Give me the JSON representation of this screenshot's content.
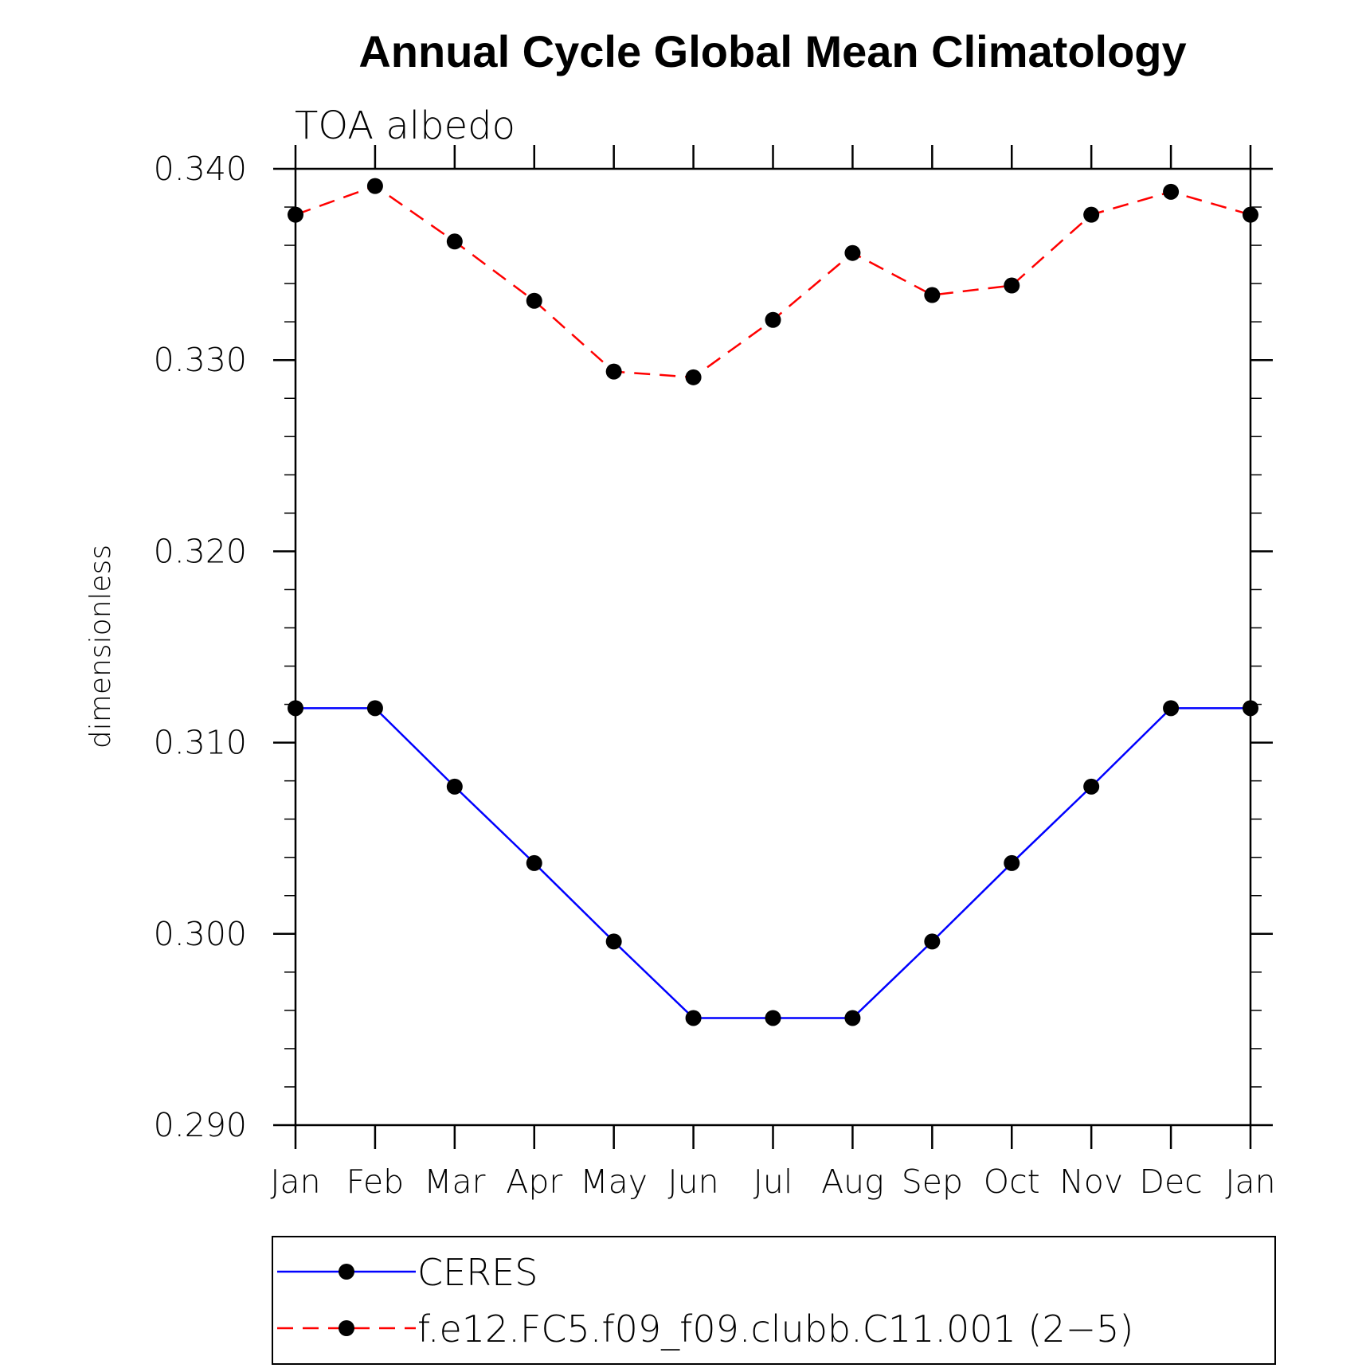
{
  "chart_data": {
    "type": "line",
    "title": "Annual Cycle Global Mean Climatology",
    "subtitle": "TOA albedo",
    "xlabel": "",
    "ylabel": "dimensionless",
    "categories": [
      "Jan",
      "Feb",
      "Mar",
      "Apr",
      "May",
      "Jun",
      "Jul",
      "Aug",
      "Sep",
      "Oct",
      "Nov",
      "Dec",
      "Jan"
    ],
    "ylim": [
      0.29,
      0.34
    ],
    "yticks": [
      "0.290",
      "0.300",
      "0.310",
      "0.320",
      "0.330",
      "0.340"
    ],
    "ytick_values": [
      0.29,
      0.3,
      0.31,
      0.32,
      0.33,
      0.34
    ],
    "y_minor_step": 0.002,
    "grid": false,
    "legend_position": "bottom",
    "series": [
      {
        "name": "CERES",
        "color": "#0000ff",
        "line_style": "solid",
        "marker": "filled-circle",
        "values": [
          0.3118,
          0.3118,
          0.3077,
          0.3037,
          0.2996,
          0.2956,
          0.2956,
          0.2956,
          0.2996,
          0.3037,
          0.3077,
          0.3118,
          0.3118
        ]
      },
      {
        "name": "f.e12.FC5.f09_f09.clubb.C11.001 (2−5)",
        "color": "#ff0000",
        "line_style": "dashed",
        "marker": "filled-circle",
        "values": [
          0.3376,
          0.3391,
          0.3362,
          0.3331,
          0.3294,
          0.3291,
          0.3321,
          0.3356,
          0.3334,
          0.3339,
          0.3376,
          0.3388,
          0.3376
        ]
      }
    ]
  }
}
